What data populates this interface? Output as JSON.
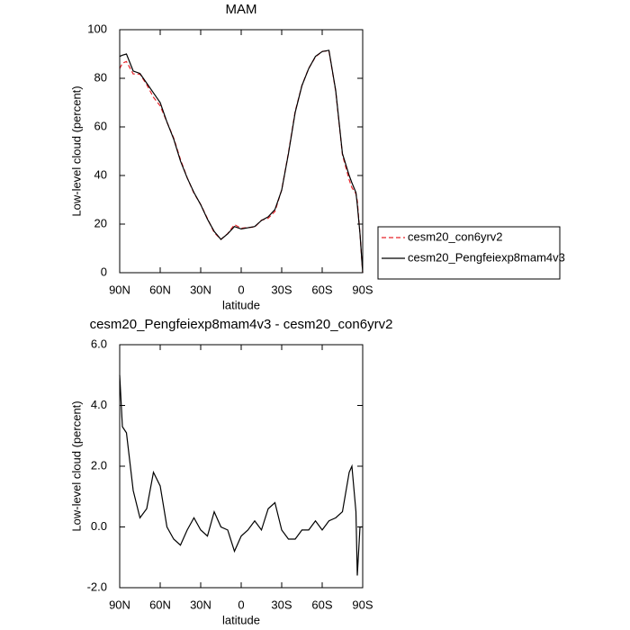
{
  "chart_data": [
    {
      "type": "line",
      "title": "MAM",
      "x_label": "latitude",
      "y_label": "Low-level cloud (percent)",
      "x": [
        90,
        88,
        85,
        80,
        75,
        70,
        65,
        60,
        55,
        50,
        45,
        40,
        35,
        30,
        25,
        20,
        15,
        10,
        5,
        0,
        -5,
        -10,
        -15,
        -20,
        -25,
        -30,
        -35,
        -40,
        -45,
        -50,
        -55,
        -60,
        -65,
        -70,
        -75,
        -80,
        -82,
        -85,
        -86,
        -88,
        -90
      ],
      "series": [
        {
          "name": "cesm20_con6yrv2",
          "color": "#e8242a",
          "dashed": true,
          "values": [
            84,
            86.2,
            86.9,
            81.8,
            81.7,
            77.4,
            72.2,
            68.65,
            62,
            55.4,
            46.6,
            39.1,
            32.7,
            28.1,
            22.3,
            16.5,
            13.7,
            16.1,
            19.8,
            18.3,
            18.6,
            18.8,
            21.6,
            22.4,
            25.2,
            34.1,
            49.4,
            66.4,
            77.1,
            84.1,
            88.8,
            91.1,
            91.3,
            74.7,
            48.5,
            38.2,
            35,
            32.5,
            29.6,
            16,
            0
          ]
        },
        {
          "name": "cesm20_Pengfeiexp8mam4v3",
          "color": "#000000",
          "dashed": false,
          "values": [
            89,
            89.5,
            90,
            83,
            82,
            78,
            74,
            70,
            62,
            55,
            46,
            39,
            33,
            28,
            22,
            17,
            13.7,
            16,
            19,
            18,
            18.5,
            19,
            21.5,
            23,
            26,
            34,
            49,
            66,
            77,
            84,
            89,
            91,
            91.5,
            75,
            49,
            40,
            37,
            33,
            28,
            16,
            0
          ]
        }
      ],
      "xlim": [
        90,
        -90
      ],
      "xticks": [
        {
          "value": 90,
          "label": "90N"
        },
        {
          "value": 60,
          "label": "60N"
        },
        {
          "value": 30,
          "label": "30N"
        },
        0,
        {
          "value": -30,
          "label": "30S"
        },
        {
          "value": -60,
          "label": "60S"
        },
        {
          "value": -90,
          "label": "90S"
        }
      ],
      "ylim": [
        0,
        100
      ],
      "yticks": [
        0,
        20,
        40,
        60,
        80,
        100
      ],
      "legend_position": "right"
    },
    {
      "type": "line",
      "title": "cesm20_Pengfeiexp8mam4v3 - cesm20_con6yrv2",
      "x_label": "latitude",
      "y_label": "Low-level cloud (percent)",
      "x": [
        90,
        88,
        85,
        80,
        75,
        70,
        65,
        60,
        55,
        50,
        45,
        40,
        35,
        30,
        25,
        20,
        15,
        10,
        5,
        0,
        -5,
        -10,
        -15,
        -20,
        -25,
        -30,
        -35,
        -40,
        -45,
        -50,
        -55,
        -60,
        -65,
        -70,
        -75,
        -80,
        -82,
        -85,
        -86,
        -88,
        -90
      ],
      "series": [
        {
          "color": "#000000",
          "dashed": false,
          "values": [
            5.0,
            3.3,
            3.1,
            1.2,
            0.3,
            0.6,
            1.8,
            1.35,
            0.0,
            -0.4,
            -0.6,
            -0.1,
            0.3,
            -0.1,
            -0.3,
            0.5,
            0.0,
            -0.1,
            -0.8,
            -0.3,
            -0.1,
            0.2,
            -0.1,
            0.6,
            0.8,
            -0.1,
            -0.4,
            -0.4,
            -0.1,
            -0.1,
            0.2,
            -0.1,
            0.2,
            0.3,
            0.5,
            1.8,
            2.0,
            0.5,
            -1.6,
            0.0,
            0.0
          ]
        }
      ],
      "xlim": [
        90,
        -90
      ],
      "xticks": [
        {
          "value": 90,
          "label": "90N"
        },
        {
          "value": 60,
          "label": "60N"
        },
        {
          "value": 30,
          "label": "30N"
        },
        0,
        {
          "value": -30,
          "label": "30S"
        },
        {
          "value": -60,
          "label": "60S"
        },
        {
          "value": -90,
          "label": "90S"
        }
      ],
      "ylim": [
        -2,
        6
      ],
      "yticks": [
        {
          "value": -2,
          "label": "-2.0"
        },
        {
          "value": 0,
          "label": "0.0"
        },
        {
          "value": 2,
          "label": "2.0"
        },
        {
          "value": 4,
          "label": "4.0"
        },
        {
          "value": 6,
          "label": "6.0"
        }
      ]
    }
  ]
}
